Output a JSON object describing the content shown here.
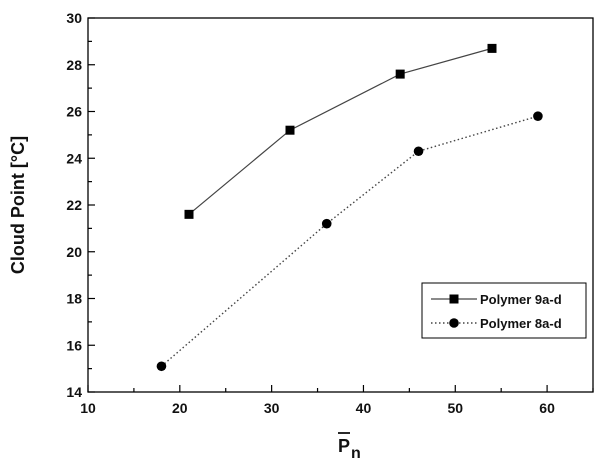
{
  "chart_data": {
    "type": "line",
    "xlabel": "P",
    "xlabel_subscript": "n",
    "ylabel": "Cloud Point [°C]",
    "xlim": [
      10,
      65
    ],
    "ylim": [
      14,
      30
    ],
    "x_ticks": [
      10,
      20,
      30,
      40,
      50,
      60
    ],
    "y_ticks": [
      14,
      16,
      18,
      20,
      22,
      24,
      26,
      28,
      30
    ],
    "grid": false,
    "legend_position": "bottom-right",
    "series": [
      {
        "name": "Polymer 9a-d",
        "marker": "square",
        "line_style": "solid",
        "x": [
          21,
          32,
          44,
          54
        ],
        "y": [
          21.6,
          25.2,
          27.6,
          28.7
        ]
      },
      {
        "name": "Polymer 8a-d",
        "marker": "circle",
        "line_style": "dotted",
        "x": [
          18,
          36,
          46,
          59
        ],
        "y": [
          15.1,
          21.2,
          24.3,
          25.8
        ]
      }
    ]
  }
}
